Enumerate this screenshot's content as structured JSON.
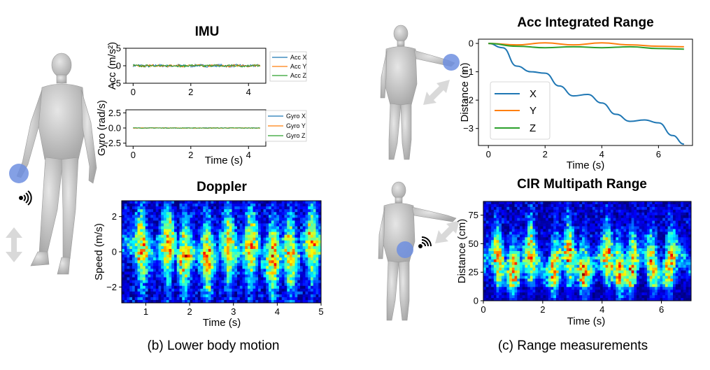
{
  "captions": {
    "left": "(b) Lower body motion",
    "right": "(c) Range measurements"
  },
  "colors": {
    "x": "#1f77b4",
    "y": "#ff7f0e",
    "z": "#2ca02c",
    "marker": "#6f8fe0",
    "arrow": "#d9d9d9",
    "body": "#bdbdbd"
  },
  "icons": {
    "left_figure": "human-body-figure",
    "signal": "wireless-signal-icon",
    "arrow": "double-arrow-icon"
  },
  "chart_data": [
    {
      "type": "line",
      "title": "IMU",
      "panel": "acc",
      "xlabel": "",
      "ylabel": "Acc (m/s²)",
      "xlim": [
        -0.25,
        4.6
      ],
      "ylim": [
        -5,
        5
      ],
      "xticks": [
        "0",
        "2",
        "4"
      ],
      "yticks": [
        "5",
        "0",
        "−5"
      ],
      "legend": [
        "Acc X",
        "Acc Y",
        "Acc Z"
      ],
      "legend_loc": "right",
      "series_amplitude": [
        0.35,
        0.3,
        0.3
      ]
    },
    {
      "type": "line",
      "panel": "gyro",
      "xlabel": "Time (s)",
      "ylabel": "Gyro (rad/s)",
      "xlim": [
        -0.25,
        4.6
      ],
      "ylim": [
        -3,
        3
      ],
      "xticks": [
        "0",
        "2",
        "4"
      ],
      "yticks": [
        "2.5",
        "0.0",
        "−2.5"
      ],
      "legend": [
        "Gyro X",
        "Gyro Y",
        "Gyro Z"
      ],
      "legend_loc": "right",
      "series_amplitude": [
        0.05,
        0.05,
        0.05
      ]
    },
    {
      "type": "heatmap",
      "title": "Doppler",
      "xlabel": "Time (s)",
      "ylabel": "Speed (m/s)",
      "xlim": [
        0.45,
        5.0
      ],
      "ylim": [
        -2.9,
        2.9
      ],
      "xticks": [
        "1",
        "2",
        "3",
        "4",
        "5"
      ],
      "yticks": [
        "2",
        "0",
        "−2"
      ],
      "burst_times": [
        0.9,
        1.5,
        1.9,
        2.4,
        2.9,
        3.4,
        3.9,
        4.3,
        4.8
      ]
    },
    {
      "type": "line",
      "title": "Acc Integrated Range",
      "xlabel": "Time (s)",
      "ylabel": "Distance (m)",
      "xlim": [
        -0.35,
        7.2
      ],
      "ylim": [
        -3.6,
        0.15
      ],
      "xticks": [
        "0",
        "2",
        "4",
        "6"
      ],
      "yticks": [
        "0",
        "−1",
        "−2",
        "−3"
      ],
      "legend_loc": "lower-left",
      "series": [
        {
          "name": "X",
          "x": [
            0,
            0.5,
            1.0,
            1.5,
            2.0,
            2.5,
            3.0,
            3.5,
            4.0,
            4.5,
            5.0,
            5.5,
            6.0,
            6.5,
            6.9
          ],
          "y": [
            0,
            -0.15,
            -0.8,
            -1.0,
            -1.05,
            -1.5,
            -1.85,
            -1.8,
            -2.1,
            -2.5,
            -2.75,
            -2.7,
            -2.8,
            -3.25,
            -3.55
          ]
        },
        {
          "name": "Y",
          "x": [
            0,
            1,
            2,
            3,
            4,
            5,
            6,
            6.9
          ],
          "y": [
            0,
            -0.05,
            0.02,
            -0.05,
            0.02,
            -0.05,
            -0.1,
            -0.12
          ]
        },
        {
          "name": "Z",
          "x": [
            0,
            1,
            2,
            3,
            4,
            5,
            6,
            6.9
          ],
          "y": [
            0,
            -0.1,
            -0.15,
            -0.12,
            -0.15,
            -0.12,
            -0.18,
            -0.2
          ]
        }
      ]
    },
    {
      "type": "heatmap",
      "title": "CIR Multipath Range",
      "xlabel": "Time (s)",
      "ylabel": "Distance (cm)",
      "xlim": [
        0,
        7.0
      ],
      "ylim": [
        0,
        87
      ],
      "xticks": [
        "0",
        "2",
        "4",
        "6"
      ],
      "yticks": [
        "75",
        "50",
        "25",
        "0"
      ],
      "burst_times": [
        0.5,
        1.0,
        1.6,
        2.4,
        2.9,
        3.4,
        4.2,
        4.6,
        5.0,
        5.7,
        6.3
      ]
    }
  ]
}
